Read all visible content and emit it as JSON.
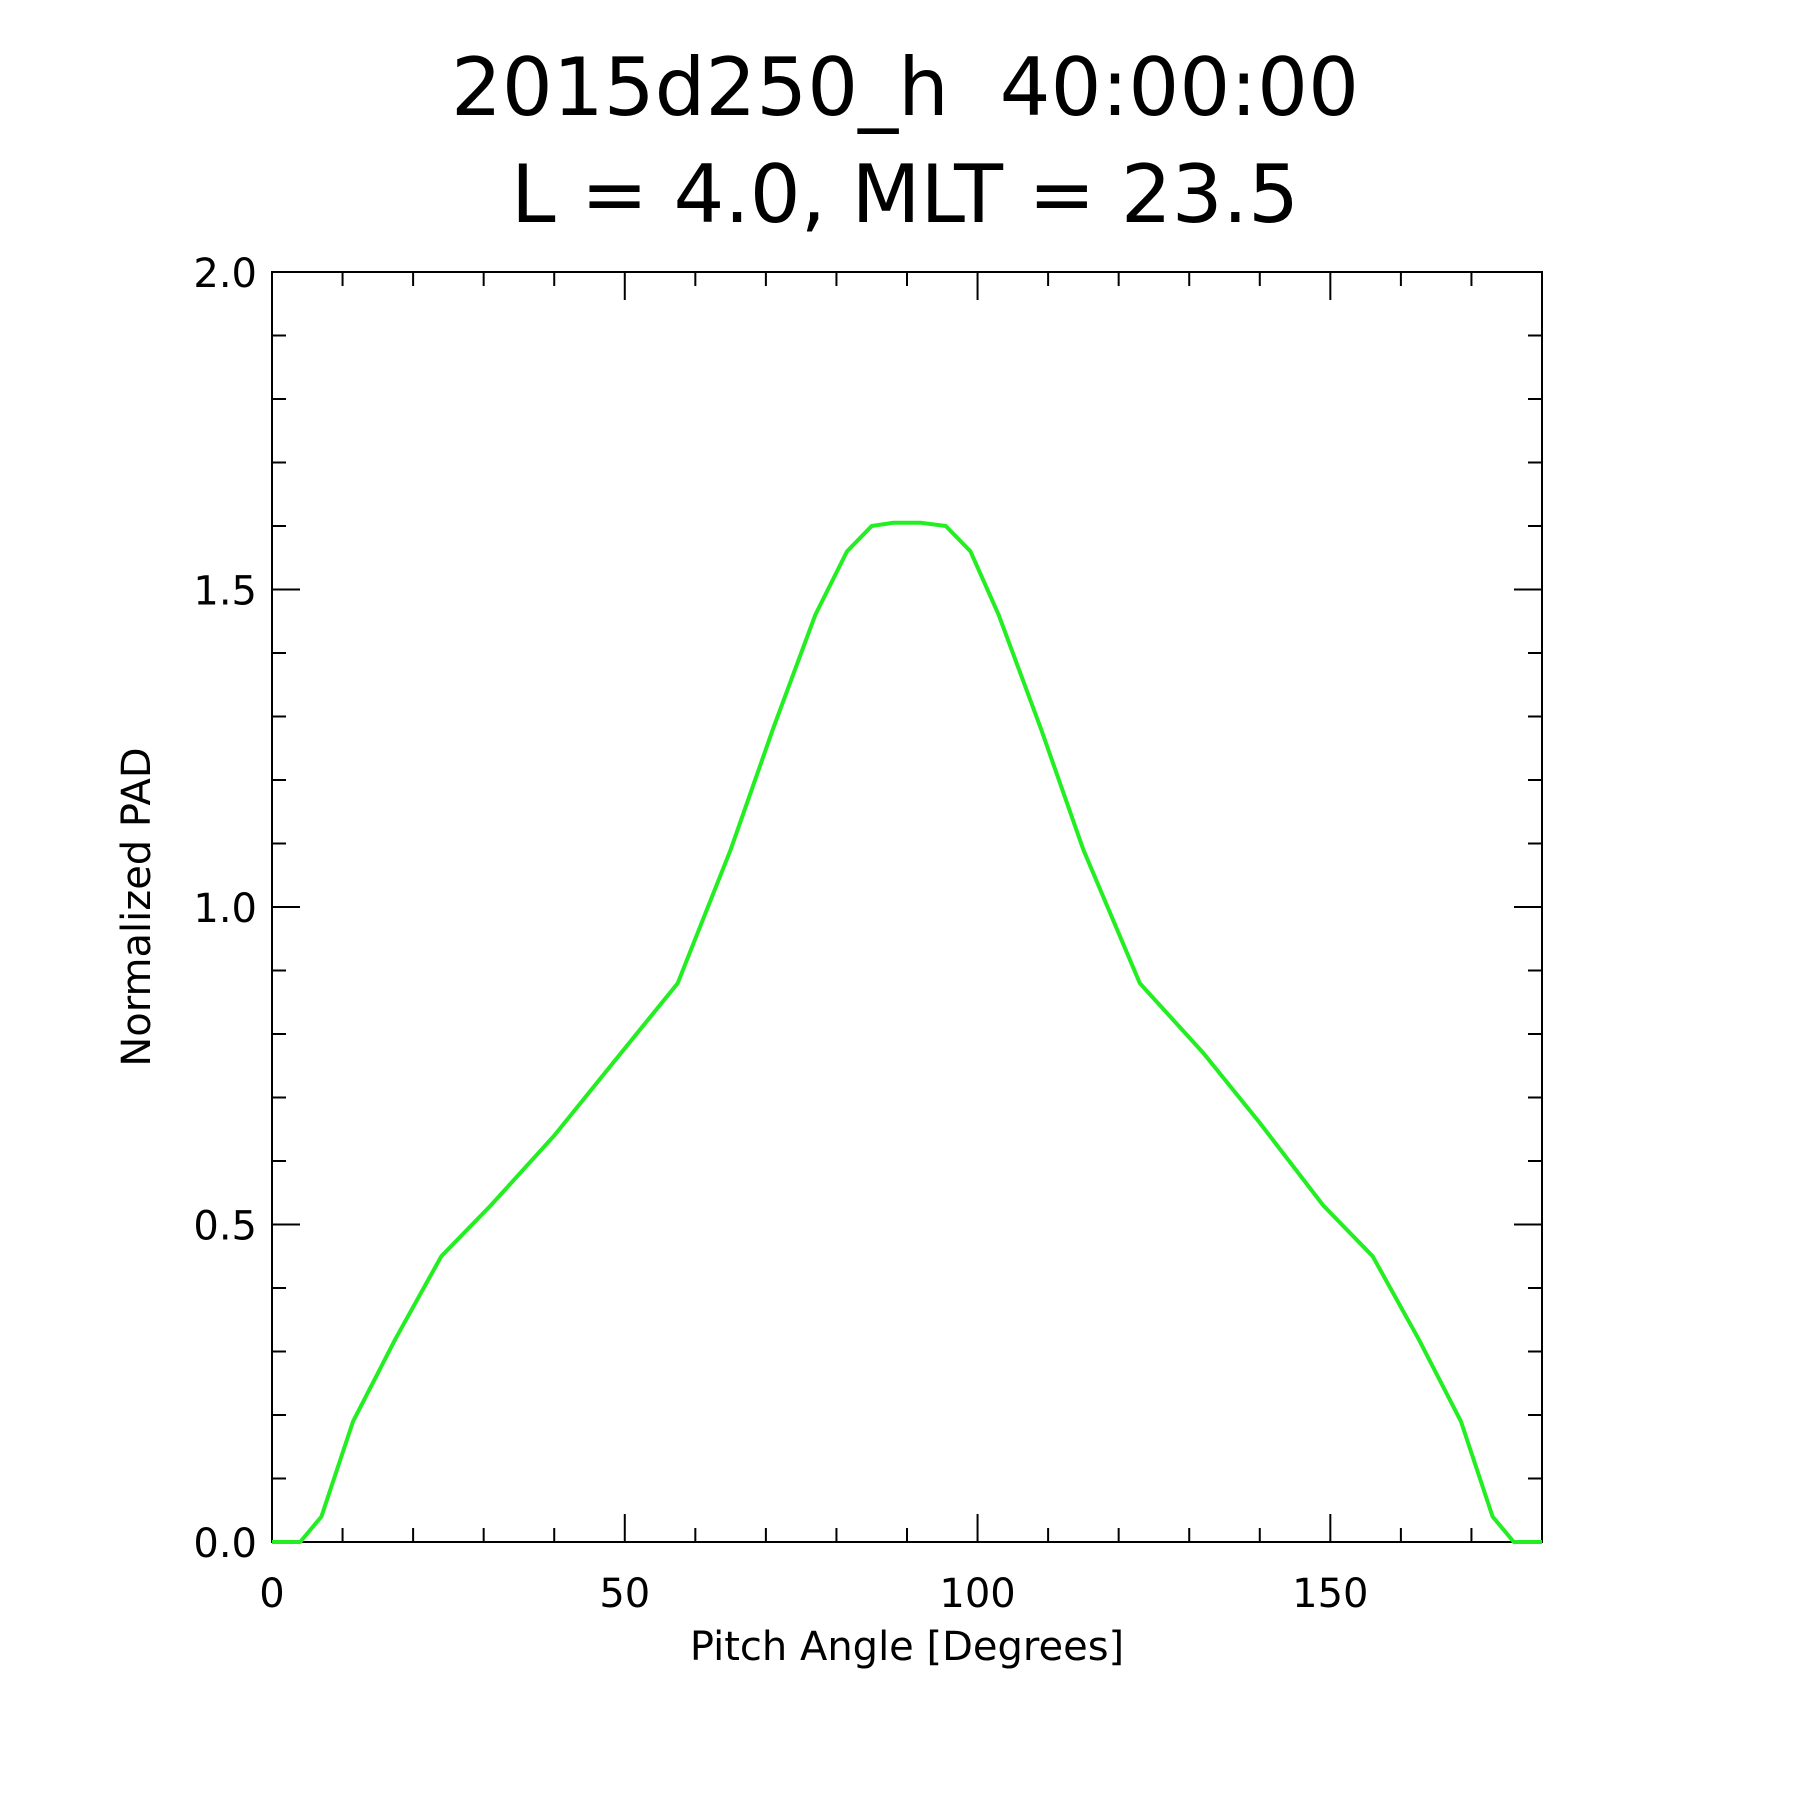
{
  "chart_data": {
    "type": "line",
    "title": "2015d250_h  40:00:00",
    "subtitle": "L = 4.0, MLT = 23.5",
    "xlabel": "Pitch Angle [Degrees]",
    "ylabel": "Normalized PAD",
    "xlim": [
      0,
      180
    ],
    "ylim": [
      0,
      2.0
    ],
    "x_ticks": [
      0,
      50,
      100,
      150
    ],
    "x_tick_labels": [
      "0",
      "50",
      "100",
      "150"
    ],
    "x_minor_step": 10,
    "y_ticks": [
      0,
      0.5,
      1.0,
      1.5,
      2.0
    ],
    "y_tick_labels": [
      "0.0",
      "0.5",
      "1.0",
      "1.5",
      "2.0"
    ],
    "y_minor_step": 0.1,
    "grid": false,
    "series": [
      {
        "color": "#22ee22",
        "x": [
          0,
          4,
          7,
          11.5,
          17.5,
          24,
          31,
          40,
          48,
          57.5,
          65,
          71,
          77,
          81.5,
          85,
          88,
          92,
          95.5,
          99,
          103,
          109,
          115,
          123,
          132,
          140,
          149,
          156,
          162.5,
          168.5,
          173,
          176,
          180
        ],
        "y": [
          0,
          0,
          0.04,
          0.19,
          0.32,
          0.45,
          0.53,
          0.64,
          0.75,
          0.88,
          1.09,
          1.28,
          1.46,
          1.56,
          1.6,
          1.605,
          1.605,
          1.6,
          1.56,
          1.46,
          1.28,
          1.09,
          0.88,
          0.77,
          0.66,
          0.53,
          0.45,
          0.32,
          0.19,
          0.04,
          0,
          0
        ]
      }
    ]
  }
}
